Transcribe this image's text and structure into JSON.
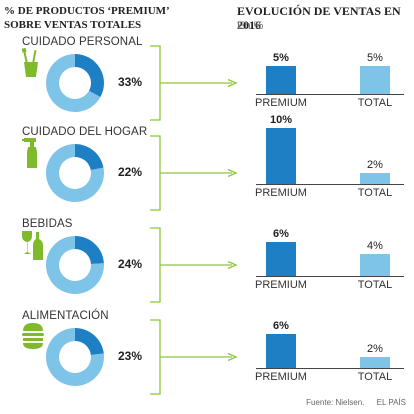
{
  "header": {
    "left_title": "% DE PRODUCTOS ‘PREMIUM’ SOBRE VENTAS TOTALES",
    "right_title": "EVOLUCIÓN DE VENTAS EN 2016",
    "right_unit": "En %"
  },
  "colors": {
    "premium_dark": "#1f7fc4",
    "total_light": "#7ec3e8",
    "connector_green": "#8dc63f",
    "icon_green": "#7fba2b"
  },
  "chart_data": [
    {
      "type": "pie",
      "title": "% DE PRODUCTOS ‘PREMIUM’ SOBRE VENTAS TOTALES",
      "categories": [
        "CUIDADO PERSONAL",
        "CUIDADO DEL HOGAR",
        "BEBIDAS",
        "ALIMENTACIÓN"
      ],
      "values": [
        33,
        22,
        24,
        23
      ],
      "value_labels": [
        "33%",
        "22%",
        "24%",
        "23%"
      ],
      "icons": [
        "toothbrush-cup-icon",
        "spray-bottle-icon",
        "wine-bottle-glass-icon",
        "burger-icon"
      ]
    },
    {
      "type": "bar",
      "title": "EVOLUCIÓN DE VENTAS EN 2016",
      "ylabel": "En %",
      "ylim": [
        0,
        10
      ],
      "categories": [
        "PREMIUM",
        "TOTAL"
      ],
      "panels": [
        {
          "group": "CUIDADO PERSONAL",
          "values": [
            5,
            5
          ],
          "labels": [
            "5%",
            "5%"
          ]
        },
        {
          "group": "CUIDADO DEL HOGAR",
          "values": [
            10,
            2
          ],
          "labels": [
            "10%",
            "2%"
          ]
        },
        {
          "group": "BEBIDAS",
          "values": [
            6,
            4
          ],
          "labels": [
            "6%",
            "4%"
          ]
        },
        {
          "group": "ALIMENTACIÓN",
          "values": [
            6,
            2
          ],
          "labels": [
            "6%",
            "2%"
          ]
        }
      ]
    }
  ],
  "footer": {
    "source": "Fuente: Nielsen.",
    "brand": "EL PAÍS"
  }
}
